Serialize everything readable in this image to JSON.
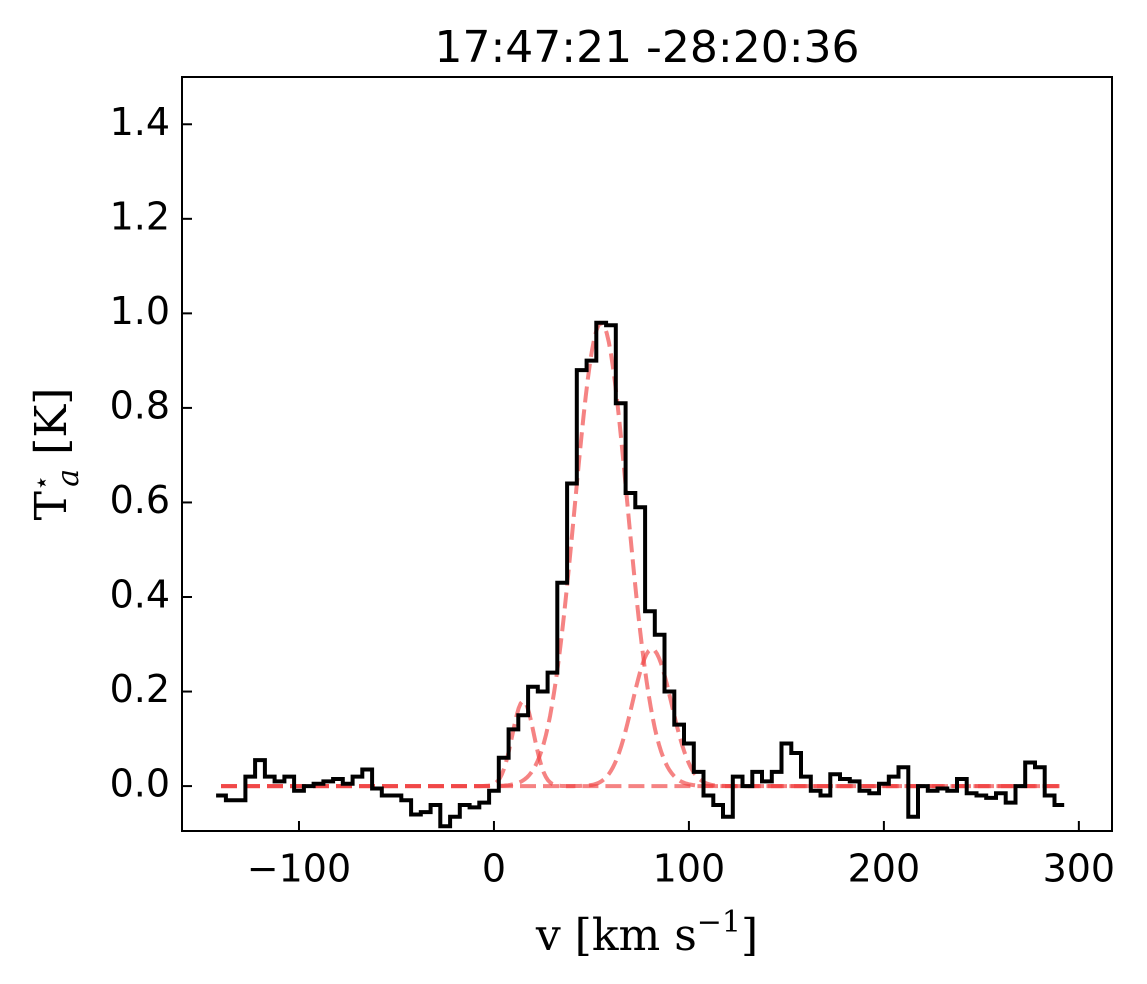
{
  "chart_data": {
    "type": "step",
    "title": "17:47:21 -28:20:36",
    "xlabel": {
      "base": "v [km s",
      "sup": "−1",
      "end": "]"
    },
    "ylabel": {
      "base": "T",
      "sup": "⋆",
      "sub": "a",
      "unit": " [K]"
    },
    "xlim": [
      -160,
      317
    ],
    "ylim": [
      -0.095,
      1.5
    ],
    "xticks": [
      {
        "value": -100,
        "label": "−100"
      },
      0,
      100,
      200,
      300
    ],
    "yticks": [
      {
        "value": 0,
        "label": "0.0"
      },
      0.2,
      0.4,
      0.6,
      0.8,
      {
        "value": 1,
        "label": "1.0"
      },
      1.2,
      1.4
    ],
    "x": [
      -140,
      -135,
      -130,
      -125,
      -120,
      -115,
      -110,
      -105,
      -100,
      -95,
      -90,
      -85,
      -80,
      -75,
      -70,
      -65,
      -60,
      -55,
      -50,
      -45,
      -40,
      -35,
      -30,
      -25,
      -20,
      -15,
      -10,
      -5,
      0,
      5,
      10,
      15,
      20,
      25,
      30,
      35,
      40,
      45,
      50,
      55,
      60,
      65,
      70,
      75,
      80,
      85,
      90,
      95,
      100,
      105,
      110,
      115,
      120,
      125,
      130,
      135,
      140,
      145,
      150,
      155,
      160,
      165,
      170,
      175,
      180,
      185,
      190,
      195,
      200,
      205,
      210,
      215,
      220,
      225,
      230,
      235,
      240,
      245,
      250,
      255,
      260,
      265,
      270,
      275,
      280,
      285,
      290
    ],
    "series": [
      {
        "color": "#000000",
        "values": [
          -0.02,
          -0.03,
          -0.03,
          0.02,
          0.055,
          0.02,
          0.01,
          0.02,
          -0.01,
          0.0,
          0.005,
          0.01,
          0.015,
          0.005,
          0.02,
          0.035,
          -0.005,
          -0.02,
          -0.02,
          -0.03,
          -0.06,
          -0.055,
          -0.04,
          -0.085,
          -0.065,
          -0.04,
          -0.045,
          -0.035,
          -0.01,
          0.06,
          0.12,
          0.15,
          0.21,
          0.2,
          0.24,
          0.43,
          0.64,
          0.88,
          0.9,
          0.98,
          0.975,
          0.81,
          0.62,
          0.59,
          0.37,
          0.32,
          0.2,
          0.13,
          0.09,
          0.03,
          -0.02,
          -0.04,
          -0.065,
          0.02,
          0.0,
          0.03,
          0.01,
          0.03,
          0.09,
          0.07,
          0.02,
          -0.01,
          -0.02,
          0.025,
          0.015,
          0.01,
          -0.01,
          -0.015,
          0.005,
          0.02,
          0.04,
          -0.065,
          0.0,
          -0.01,
          -0.005,
          -0.01,
          0.015,
          -0.015,
          -0.02,
          -0.025,
          -0.015,
          -0.035,
          0.0,
          0.05,
          0.04,
          -0.02,
          -0.04
        ]
      }
    ],
    "fits": {
      "color": "#f04040",
      "components": [
        {
          "amplitude": 0.98,
          "center": 55,
          "sigma": 13.5
        },
        {
          "amplitude": 0.29,
          "center": 81,
          "sigma": 10
        },
        {
          "amplitude": 0.18,
          "center": 15,
          "sigma": 5.5
        }
      ]
    }
  }
}
